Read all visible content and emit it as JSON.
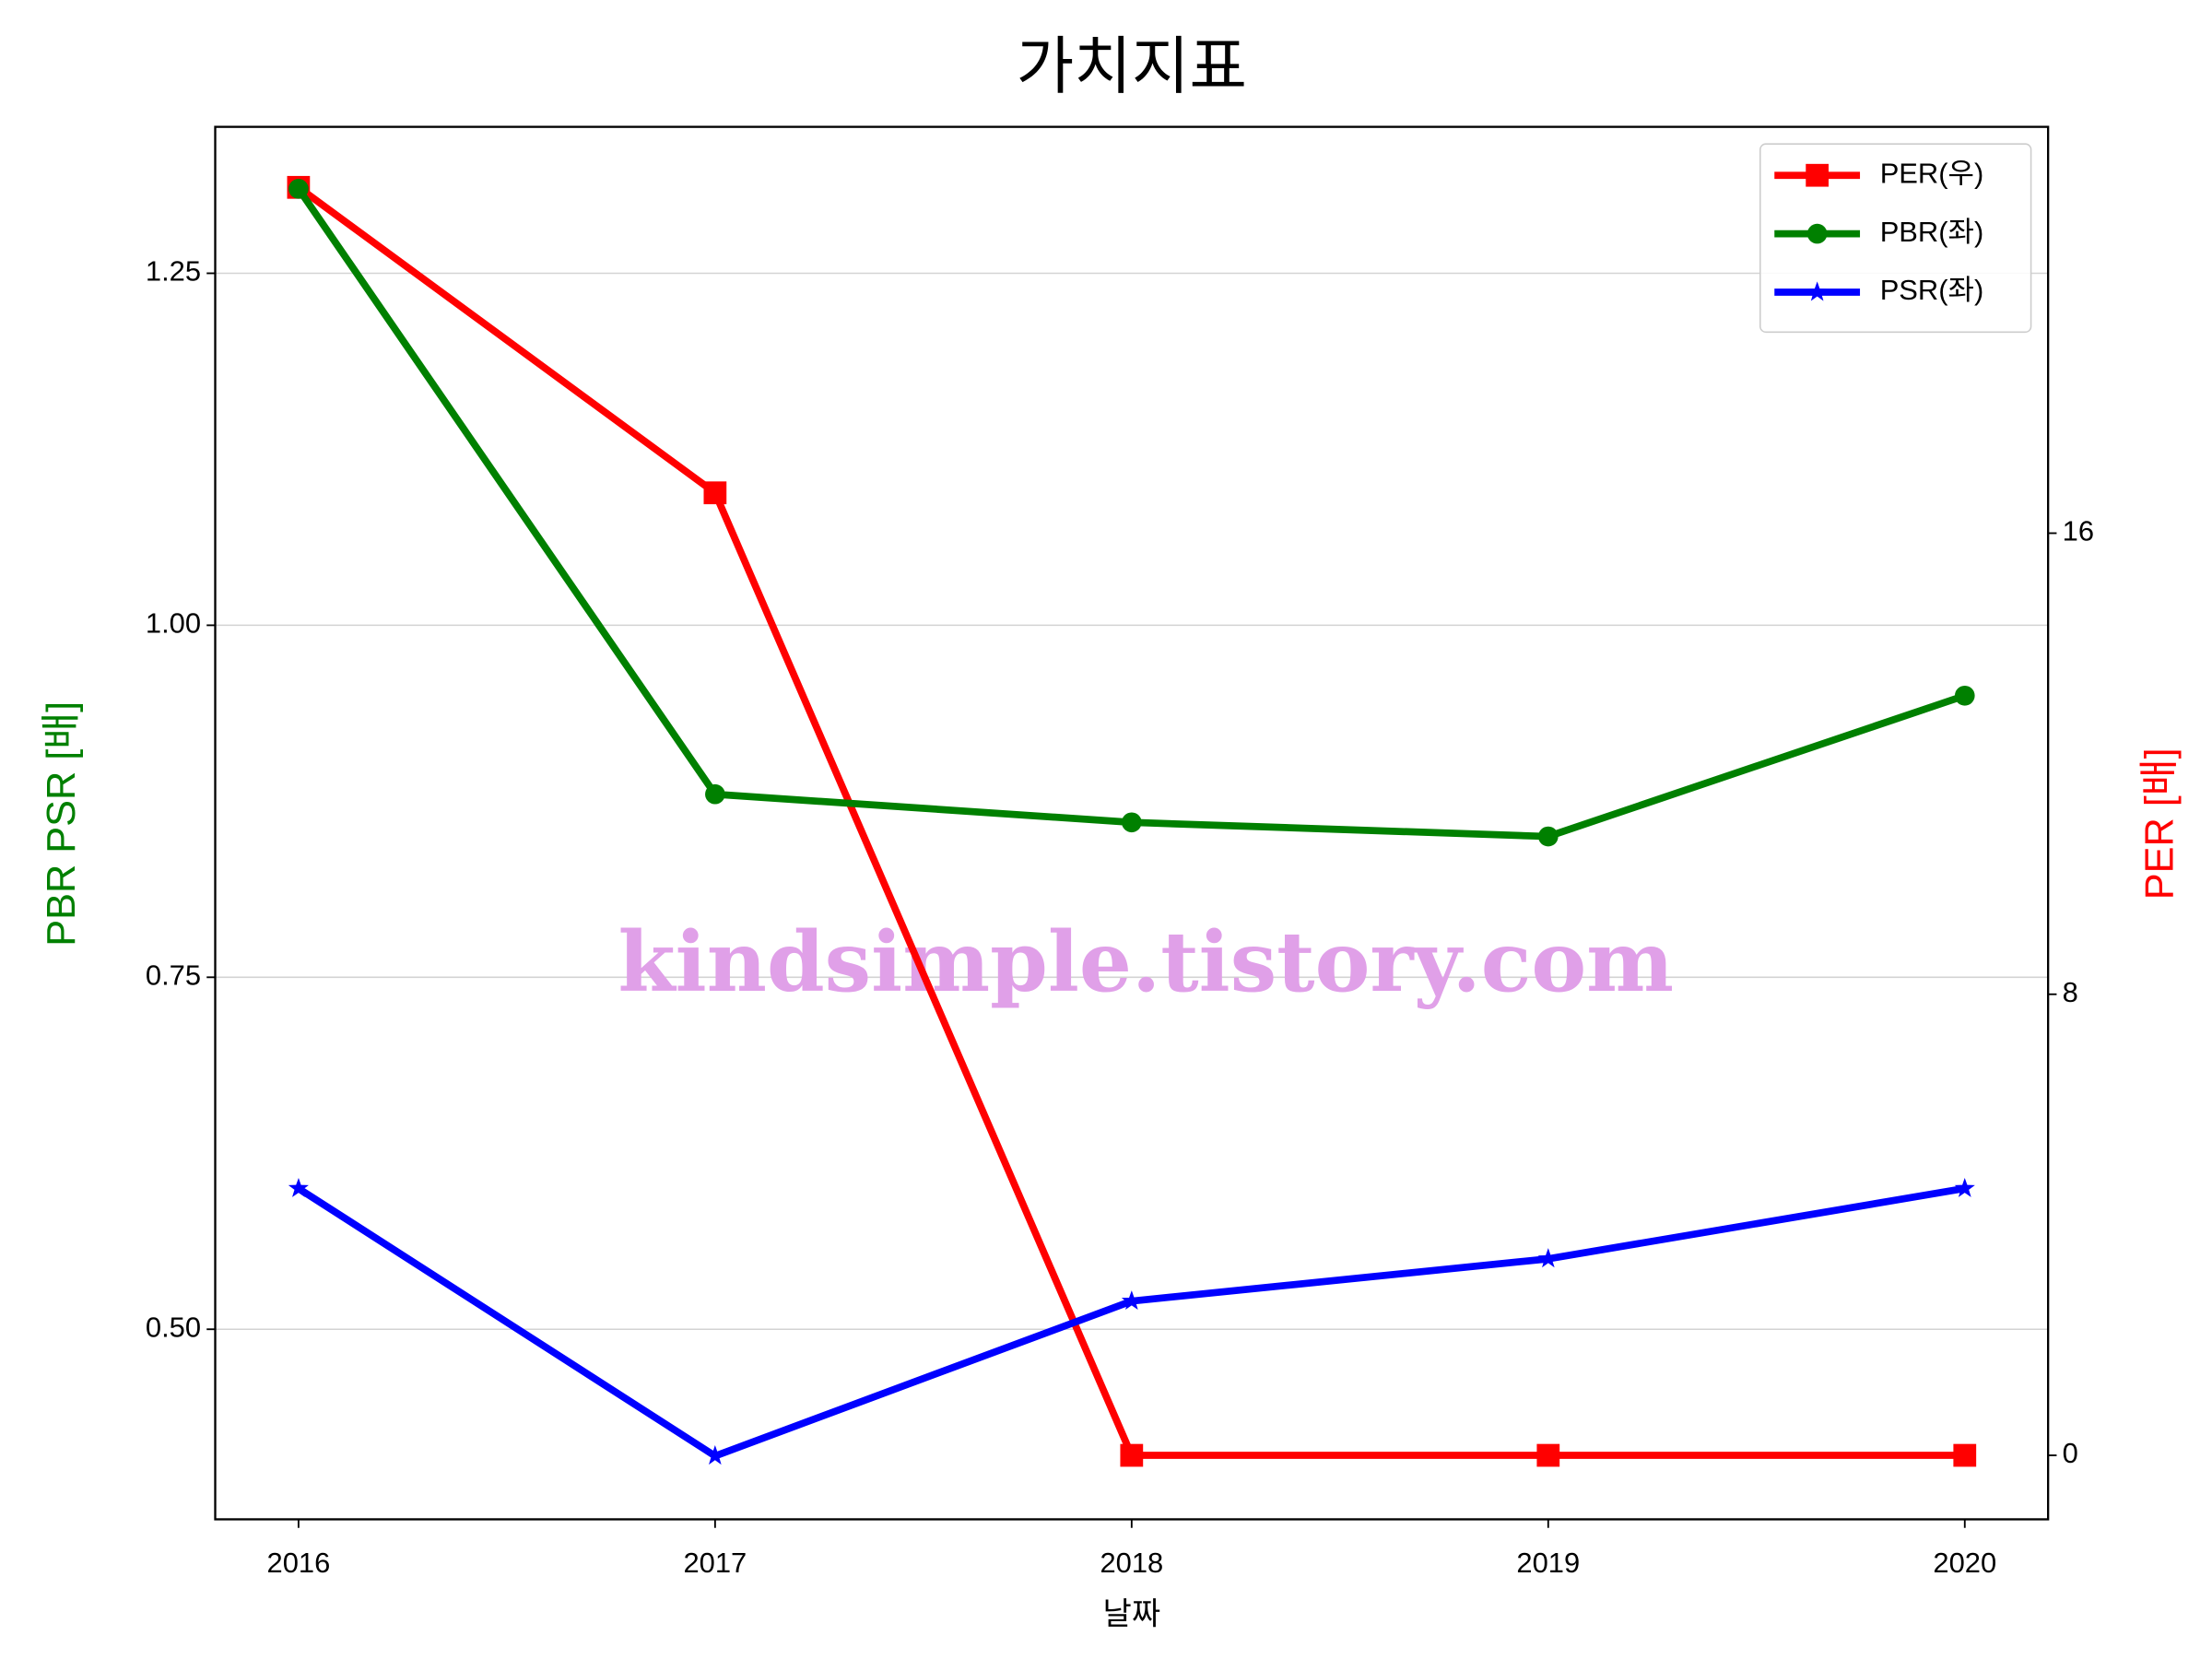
{
  "chart_data": {
    "type": "line",
    "title": "가치지표",
    "xlabel": "날짜",
    "ylabel": "PBR PSR [배]",
    "y2label": "PER [배]",
    "watermark": "kindsimple.tistory.com",
    "x": [
      2016,
      2017,
      2018,
      2019,
      2020
    ],
    "xlim": [
      2015.8,
      2020.2
    ],
    "xticks": [
      2016,
      2017,
      2018,
      2019,
      2020
    ],
    "ylim": [
      0.365,
      1.354
    ],
    "yticks": [
      {
        "value": 0.5,
        "label": "0.50"
      },
      {
        "value": 0.75,
        "label": "0.75"
      },
      {
        "value": 1.0,
        "label": "1.00"
      },
      {
        "value": 1.25,
        "label": "1.25"
      }
    ],
    "y2lim": [
      -1.11,
      23.05
    ],
    "y2ticks": [
      0,
      8,
      16
    ],
    "grid": true,
    "legend": "upper right",
    "series": [
      {
        "name": "PER(우)",
        "color": "#ff0000",
        "marker": "square",
        "axis": "y2",
        "values": [
          22.0,
          16.7,
          0,
          0,
          0
        ]
      },
      {
        "name": "PBR(좌)",
        "color": "#008000",
        "marker": "circle",
        "values": [
          1.31,
          0.88,
          0.86,
          0.85,
          0.95
        ]
      },
      {
        "name": "PSR(좌)",
        "color": "#0000ff",
        "marker": "star",
        "values": [
          0.6,
          0.41,
          0.52,
          0.55,
          0.6
        ]
      }
    ]
  }
}
